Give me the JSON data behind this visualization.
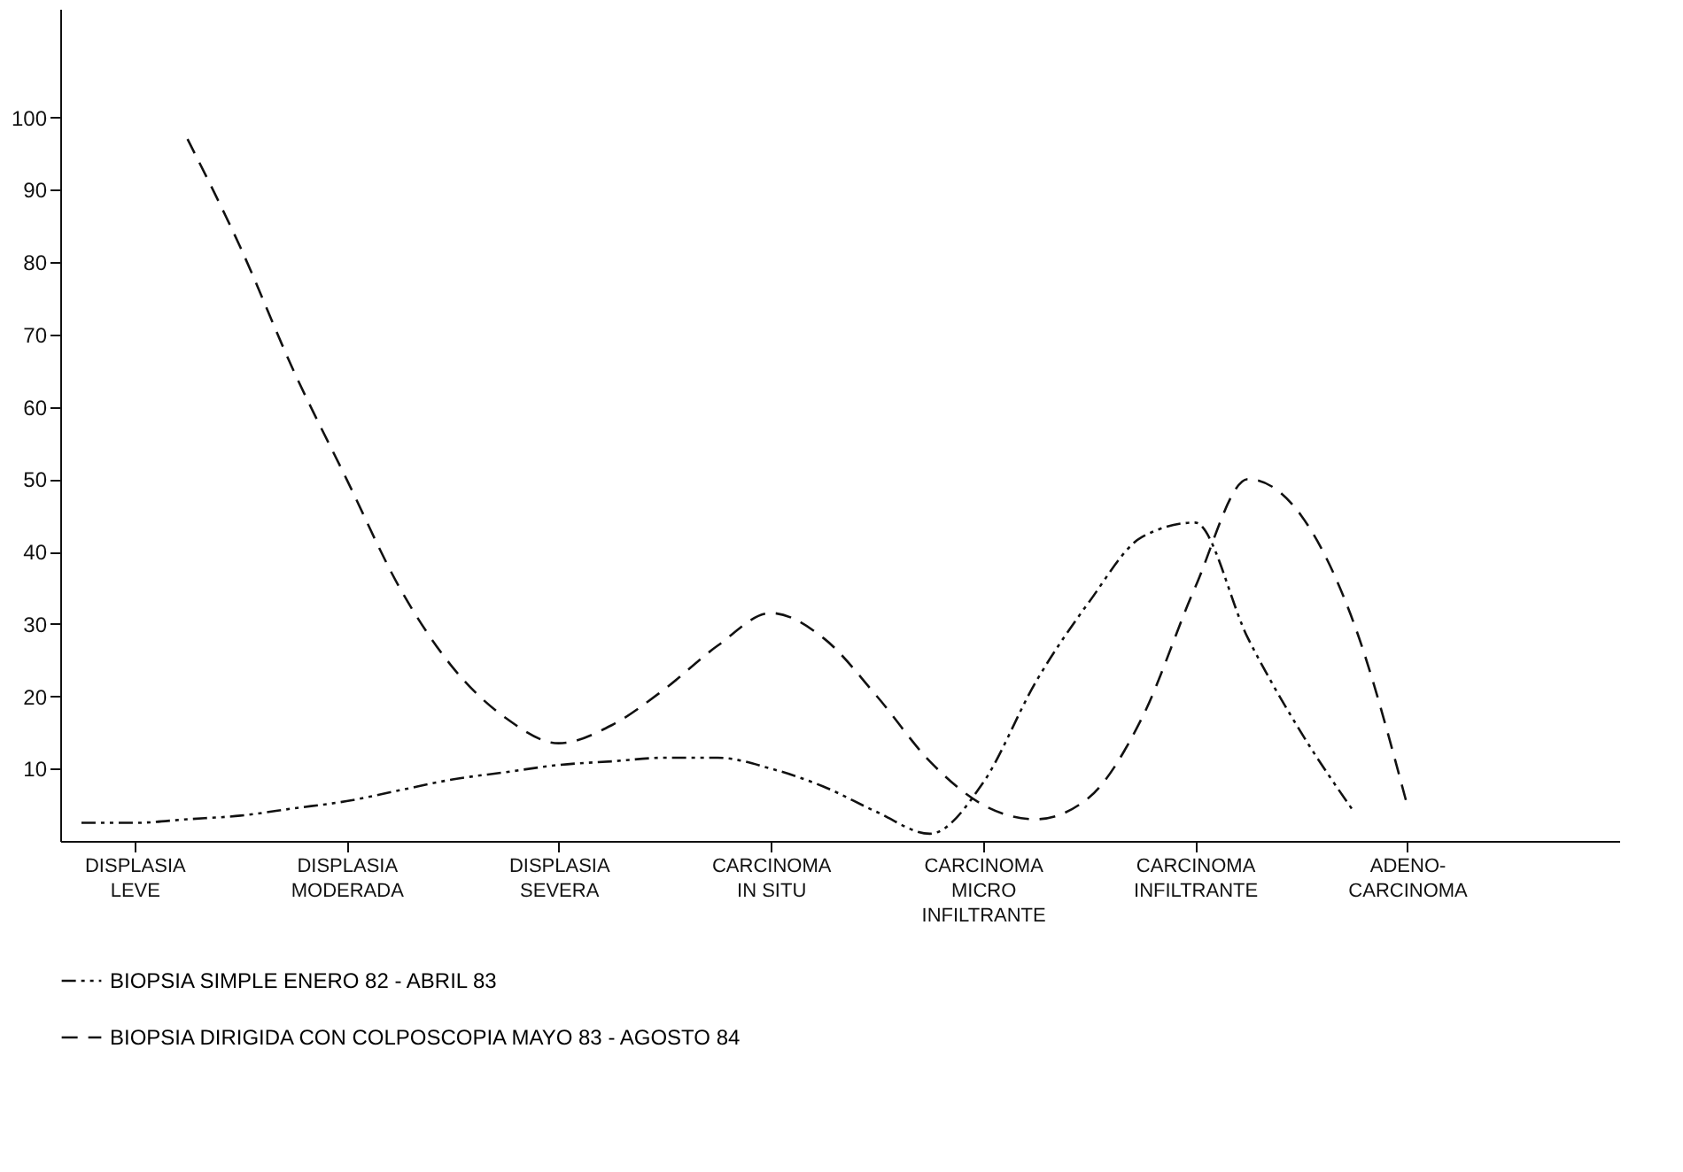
{
  "chart_data": {
    "type": "line",
    "categories": [
      null,
      "DISPLASIA\nLEVE",
      null,
      null,
      null,
      "DISPLASIA\nMODERADA",
      null,
      null,
      null,
      "DISPLASIA\nSEVERA",
      null,
      null,
      null,
      "CARCINOMA\nIN SITU",
      null,
      null,
      null,
      "CARCINOMA\nMICRO\nINFILTRANTE",
      null,
      null,
      null,
      "CARCINOMA\nINFILTRANTE",
      null,
      null,
      null,
      "ADENO-\nCARCINOMA",
      null,
      null,
      null,
      null
    ],
    "ylim": [
      0,
      115
    ],
    "yticks": [
      10,
      20,
      30,
      40,
      50,
      60,
      70,
      80,
      90,
      100
    ],
    "grid": false,
    "legend": "bottom",
    "series": [
      {
        "name": "BIOPSIA SIMPLE      ENERO 82  -  ABRIL 83",
        "color": "#111111",
        "line_style": "dotted",
        "values": [
          2.5,
          2.5,
          3,
          3.5,
          4.5,
          5.5,
          7,
          8.5,
          9.5,
          10.5,
          11,
          11.5,
          11.5,
          10,
          7.5,
          4,
          1,
          8,
          22,
          33,
          42,
          44,
          28,
          15,
          4,
          null,
          null,
          null,
          null,
          null
        ]
      },
      {
        "name": "BIOPSIA DIRIGIDA CON COLPOSCOPIA      MAYO 83  -  AGOSTO 84",
        "color": "#111111",
        "line_style": "dashed",
        "values": [
          null,
          null,
          97,
          82,
          65,
          50,
          35,
          24,
          17,
          13.5,
          16,
          21,
          27,
          31.5,
          28,
          20,
          11,
          5,
          3,
          6,
          17,
          35,
          50,
          45,
          30,
          5,
          null,
          null,
          null,
          null
        ]
      }
    ]
  }
}
